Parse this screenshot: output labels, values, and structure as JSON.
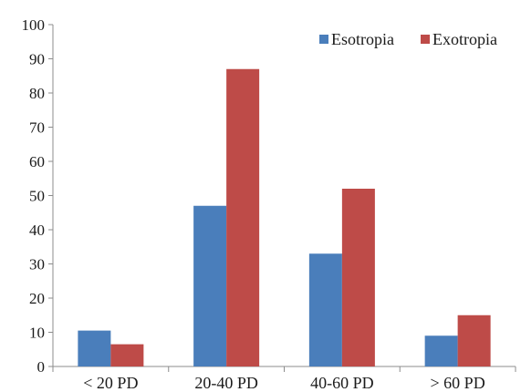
{
  "chart_data": {
    "type": "bar",
    "title": "",
    "xlabel": "",
    "ylabel": "",
    "categories": [
      "< 20 PD",
      "20-40 PD",
      "40-60 PD",
      "> 60 PD"
    ],
    "series": [
      {
        "name": "Esotropia",
        "color": "#4a7ebb",
        "values": [
          10.5,
          47,
          33,
          9
        ]
      },
      {
        "name": "Exotropia",
        "color": "#be4b48",
        "values": [
          6.5,
          87,
          52,
          15
        ]
      }
    ],
    "ylim": [
      0,
      100
    ],
    "yticks": [
      0,
      10,
      20,
      30,
      40,
      50,
      60,
      70,
      80,
      90,
      100
    ],
    "grid": false,
    "legend_position": "top-right"
  }
}
